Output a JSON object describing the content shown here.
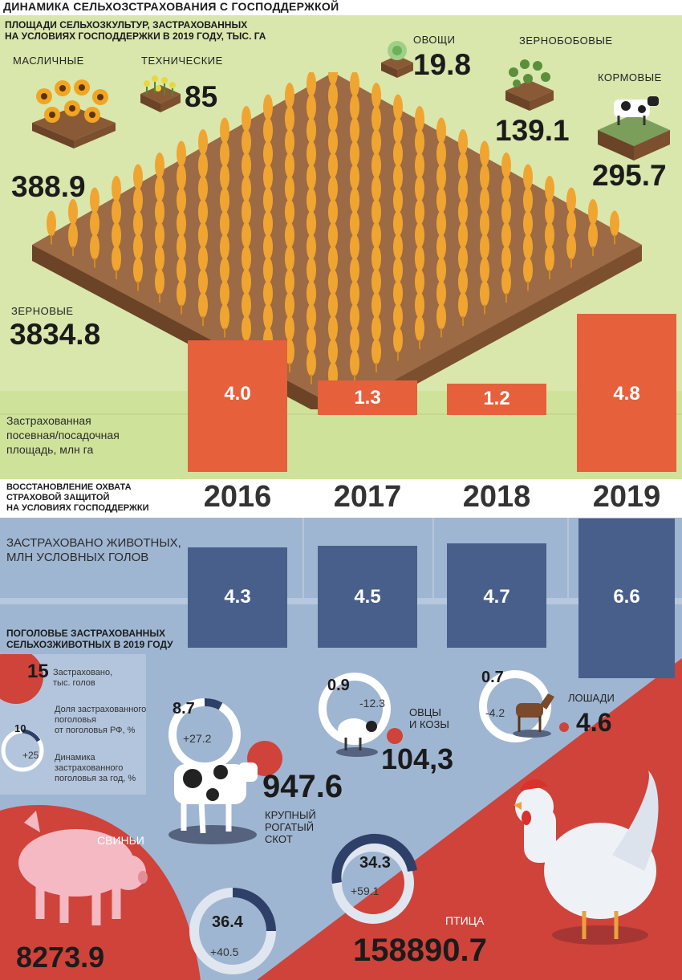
{
  "title": "ДИНАМИКА СЕЛЬХОЗСТРАХОВАНИЯ С ГОСПОДДЕРЖКОЙ",
  "crops": {
    "heading_line1": "ПЛОЩАДИ СЕЛЬХОЗКУЛЬТУР, ЗАСТРАХОВАННЫХ",
    "heading_line2": "НА УСЛОВИЯХ ГОСПОДДЕРЖКИ В 2019 ГОДУ, ТЫС. ГА",
    "items": [
      {
        "name": "МАСЛИЧНЫЕ",
        "value": "388.9"
      },
      {
        "name": "ТЕХНИЧЕСКИЕ",
        "value": "85"
      },
      {
        "name": "ОВОЩИ",
        "value": "19.8"
      },
      {
        "name": "ЗЕРНОБОБОВЫЕ",
        "value": "139.1"
      },
      {
        "name": "КОРМОВЫЕ",
        "value": "295.7"
      },
      {
        "name": "ЗЕРНОВЫЕ",
        "value": "3834.8"
      }
    ]
  },
  "section_mid": {
    "line1": "ВОССТАНОВЛЕНИЕ ОХВАТА",
    "line2": "СТРАХОВОЙ ЗАЩИТОЙ",
    "line3": "НА УСЛОВИЯХ ГОСПОДДЕРЖКИ"
  },
  "chart_data": [
    {
      "type": "bar",
      "categories": [
        "2016",
        "2017",
        "2018",
        "2019"
      ],
      "values": [
        4.0,
        1.3,
        1.2,
        4.8
      ],
      "value_labels": [
        "4.0",
        "1.3",
        "1.2",
        "4.8"
      ],
      "ylabel_line1": "Застрахованная",
      "ylabel_line2": "посевная/посадочная",
      "ylabel_line3": "площадь, млн га",
      "color": "#e5603b"
    },
    {
      "type": "bar",
      "categories": [
        "2016",
        "2017",
        "2018",
        "2019"
      ],
      "values": [
        4.3,
        4.5,
        4.7,
        6.6
      ],
      "value_labels": [
        "4.3",
        "4.5",
        "4.7",
        "6.6"
      ],
      "ylabel_line1": "ЗАСТРАХОВАНО ЖИВОТНЫХ,",
      "ylabel_line2": "МЛН УСЛОВНЫХ ГОЛОВ",
      "color": "#475f8a"
    }
  ],
  "livestock": {
    "heading_line1": "ПОГОЛОВЬЕ ЗАСТРАХОВАННЫХ",
    "heading_line2": "СЕЛЬХОЗЖИВОТНЫХ В 2019 ГОДУ",
    "legend": {
      "v1": "15",
      "t1a": "Застраховано,",
      "t1b": "тыс. голов",
      "v2": "10",
      "t2a": "Доля застрахованного",
      "t2b": "поголовья",
      "t2c": "от поголовья РФ, %",
      "v3": "+25",
      "t3a": "Динамика",
      "t3b": "застрахованного",
      "t3c": "поголовья за год, %"
    },
    "cattle": {
      "share": "8.7",
      "change": "+27.2",
      "count": "947.6",
      "name1": "КРУПНЫЙ",
      "name2": "РОГАТЫЙ",
      "name3": "СКОТ"
    },
    "sheep": {
      "share": "0.9",
      "change": "-12.3",
      "count": "104,3",
      "name1": "ОВЦЫ",
      "name2": "И КОЗЫ"
    },
    "horses": {
      "share": "0.7",
      "change": "-4.2",
      "count": "4.6",
      "name": "ЛОШАДИ"
    },
    "pigs": {
      "share": "36.4",
      "change": "+40.5",
      "count": "8273.9",
      "name": "СВИНЬИ"
    },
    "poultry": {
      "share": "34.3",
      "change": "+59.1",
      "count": "158890.7",
      "name": "ПТИЦА"
    }
  },
  "colors": {
    "orange_bar": "#e5603b",
    "blue_bar": "#475f8a",
    "red": "#cf433b",
    "green_bg": "#d9e7ad",
    "blue_bg": "#9fb6d2",
    "ring_dark": "#2e4068"
  }
}
